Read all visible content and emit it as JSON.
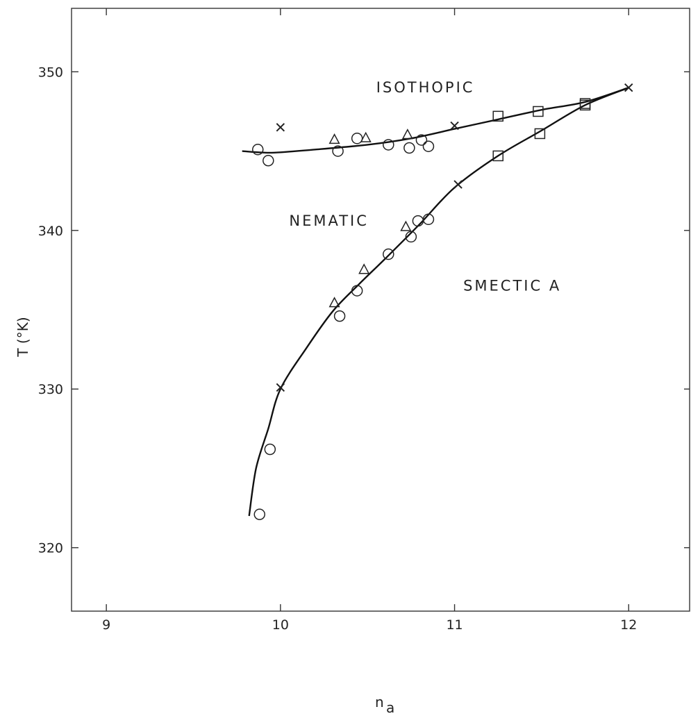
{
  "chart_data": {
    "type": "scatter",
    "title": "",
    "xlabel": "n_a",
    "xlabel_main": "n",
    "xlabel_sub": "a",
    "ylabel": "T (°K)",
    "xlim": [
      8.8,
      12.35
    ],
    "ylim": [
      316,
      354
    ],
    "xticks": [
      9,
      10,
      11,
      12
    ],
    "xtick_labels": [
      "9",
      "10",
      "11",
      "12"
    ],
    "yticks": [
      320,
      330,
      340,
      350
    ],
    "ytick_labels": [
      "320",
      "330",
      "340",
      "350"
    ],
    "grid": false,
    "legend": "none",
    "region_labels": [
      {
        "text": "ISOTHOPIC",
        "x": 10.55,
        "y": 348.7
      },
      {
        "text": "NEMATIC",
        "x": 10.05,
        "y": 340.3
      },
      {
        "text": "SMECTIC A",
        "x": 11.05,
        "y": 336.2
      }
    ],
    "series": [
      {
        "marker": "circle",
        "points": [
          [
            9.87,
            345.1
          ],
          [
            9.93,
            344.4
          ],
          [
            10.33,
            345.0
          ],
          [
            10.44,
            345.8
          ],
          [
            10.62,
            345.4
          ],
          [
            10.74,
            345.2
          ],
          [
            10.81,
            345.7
          ],
          [
            10.85,
            345.3
          ],
          [
            9.88,
            322.1
          ],
          [
            9.94,
            326.2
          ],
          [
            10.34,
            334.6
          ],
          [
            10.44,
            336.2
          ],
          [
            10.62,
            338.5
          ],
          [
            10.75,
            339.6
          ],
          [
            10.79,
            340.6
          ],
          [
            10.85,
            340.7
          ]
        ]
      },
      {
        "marker": "triangle",
        "points": [
          [
            10.31,
            345.7
          ],
          [
            10.49,
            345.8
          ],
          [
            10.73,
            346.0
          ],
          [
            10.31,
            335.4
          ],
          [
            10.48,
            337.5
          ],
          [
            10.72,
            340.2
          ]
        ]
      },
      {
        "marker": "square",
        "points": [
          [
            11.25,
            347.2
          ],
          [
            11.48,
            347.5
          ],
          [
            11.75,
            348.0
          ],
          [
            11.25,
            344.7
          ],
          [
            11.49,
            346.1
          ],
          [
            11.75,
            347.9
          ]
        ]
      },
      {
        "marker": "cross",
        "points": [
          [
            10.0,
            346.5
          ],
          [
            11.0,
            346.6
          ],
          [
            12.0,
            349.0
          ],
          [
            10.0,
            330.1
          ],
          [
            11.02,
            342.9
          ]
        ]
      }
    ],
    "curves": [
      {
        "name_hint": "upper transition line",
        "points": [
          [
            9.78,
            345.0
          ],
          [
            9.95,
            344.9
          ],
          [
            10.2,
            345.1
          ],
          [
            10.5,
            345.4
          ],
          [
            10.75,
            345.8
          ],
          [
            11.0,
            346.4
          ],
          [
            11.25,
            347.0
          ],
          [
            11.5,
            347.6
          ],
          [
            11.75,
            348.1
          ],
          [
            12.0,
            349.0
          ]
        ]
      },
      {
        "name_hint": "nematic-smectic A line",
        "points": [
          [
            9.82,
            322.0
          ],
          [
            9.86,
            325.0
          ],
          [
            9.93,
            327.5
          ],
          [
            10.0,
            330.0
          ],
          [
            10.15,
            332.6
          ],
          [
            10.3,
            334.9
          ],
          [
            10.45,
            336.6
          ],
          [
            10.6,
            338.2
          ],
          [
            10.8,
            340.4
          ],
          [
            11.0,
            342.7
          ],
          [
            11.25,
            344.7
          ],
          [
            11.5,
            346.3
          ],
          [
            11.75,
            347.9
          ],
          [
            12.0,
            349.0
          ]
        ]
      }
    ]
  }
}
